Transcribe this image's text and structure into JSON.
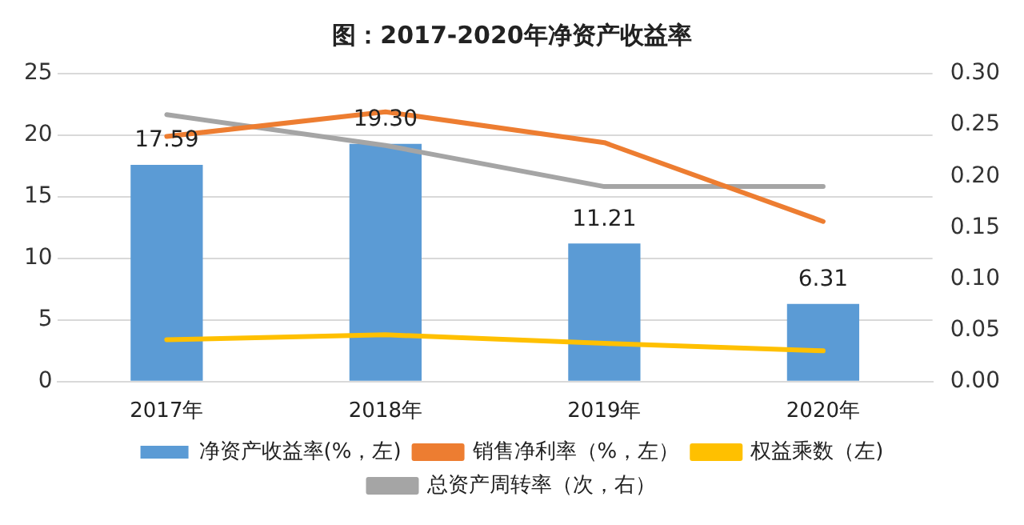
{
  "chart_data": {
    "type": "bar",
    "title": "图：2017-2020年净资产收益率",
    "categories": [
      "2017年",
      "2018年",
      "2019年",
      "2020年"
    ],
    "series": [
      {
        "name": "净资产收益率(%，左)",
        "color": "#5b9bd5",
        "values": [
          17.59,
          19.3,
          11.21,
          6.31
        ],
        "value_labels": [
          "17.59",
          "19.30",
          "11.21",
          "6.31"
        ]
      },
      {
        "name": "销售净利率（%，左）",
        "type": "line",
        "color": "#ed7d31",
        "values": [
          19.9,
          21.9,
          19.4,
          13.0
        ]
      },
      {
        "name": "权益乘数（左)",
        "type": "line",
        "color": "#ffc000",
        "values": [
          3.4,
          3.8,
          3.1,
          2.5
        ]
      },
      {
        "name": "总资产周转率（次，右）",
        "type": "line",
        "color": "#a5a5a5",
        "axis": "y2",
        "values": [
          0.26,
          0.23,
          0.19,
          0.19
        ]
      }
    ],
    "ylim": [
      0,
      25
    ],
    "yticks": [
      0,
      5,
      10,
      15,
      20,
      25
    ],
    "y2lim": [
      0,
      0.3
    ],
    "y2ticks": [
      {
        "value": 0,
        "label": "0.00"
      },
      {
        "value": 0.05,
        "label": "0.05"
      },
      {
        "value": 0.1,
        "label": "0.10"
      },
      {
        "value": 0.15,
        "label": "0.15"
      },
      {
        "value": 0.2,
        "label": "0.20"
      },
      {
        "value": 0.25,
        "label": "0.25"
      },
      {
        "value": 0.3,
        "label": "0.30"
      }
    ],
    "grid": "y",
    "legend": "bottom",
    "marker": "none",
    "line_style": "solid"
  }
}
